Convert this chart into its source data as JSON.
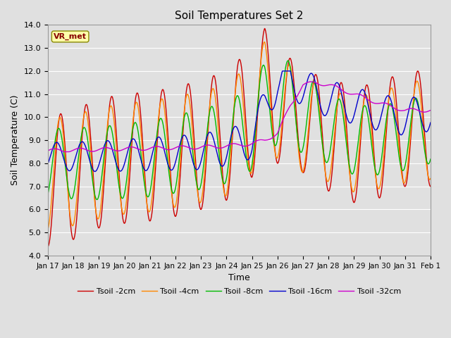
{
  "title": "Soil Temperatures Set 2",
  "xlabel": "Time",
  "ylabel": "Soil Temperature (C)",
  "ylim": [
    4.0,
    14.0
  ],
  "yticks": [
    4.0,
    5.0,
    6.0,
    7.0,
    8.0,
    9.0,
    10.0,
    11.0,
    12.0,
    13.0,
    14.0
  ],
  "series_colors": [
    "#cc0000",
    "#ff8800",
    "#00bb00",
    "#0000cc",
    "#cc00cc"
  ],
  "series_labels": [
    "Tsoil -2cm",
    "Tsoil -4cm",
    "Tsoil -8cm",
    "Tsoil -16cm",
    "Tsoil -32cm"
  ],
  "xtick_labels": [
    "Jan 17",
    "Jan 18",
    "Jan 19",
    "Jan 20",
    "Jan 21",
    "Jan 22",
    "Jan 23",
    "Jan 24",
    "Jan 25",
    "Jan 26",
    "Jan 27",
    "Jan 28",
    "Jan 29",
    "Jan 30",
    "Jan 31",
    "Feb 1"
  ],
  "annotation_text": "VR_met",
  "background_color": "#e0e0e0",
  "plot_bg_color": "#e0e0e0",
  "grid_color": "#ffffff",
  "figsize": [
    6.4,
    4.8
  ],
  "dpi": 100
}
